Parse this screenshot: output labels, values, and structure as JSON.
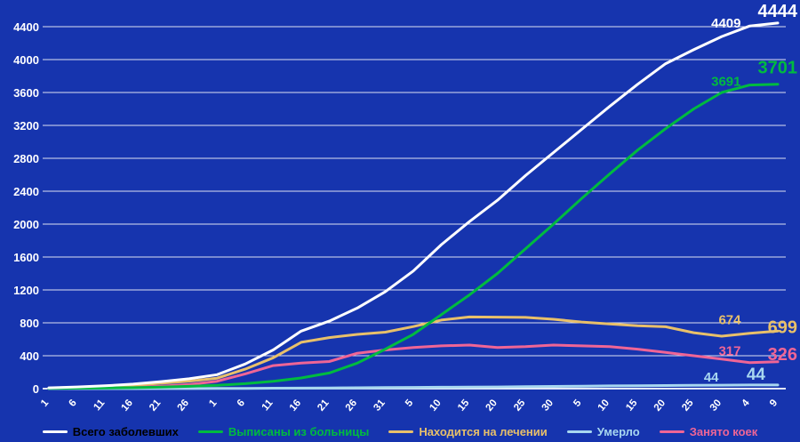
{
  "colors": {
    "background": "#1634ae",
    "grid": "#ffffff",
    "axis_text": "#ffffff"
  },
  "chart_data": {
    "type": "line",
    "title": "",
    "xlabel": "",
    "ylabel": "",
    "ylim": [
      0,
      4400
    ],
    "y_ticks": [
      0,
      400,
      800,
      1200,
      1600,
      2000,
      2400,
      2800,
      3200,
      3600,
      4000,
      4400
    ],
    "grid": "horizontal",
    "legend_position": "bottom",
    "x_tick_labels": [
      "1",
      "6",
      "11",
      "16",
      "21",
      "26",
      "1",
      "6",
      "11",
      "16",
      "21",
      "26",
      "31",
      "5",
      "10",
      "15",
      "20",
      "25",
      "30",
      "5",
      "10",
      "15",
      "20",
      "25",
      "30",
      "4",
      "9"
    ],
    "series": [
      {
        "name": "Всего заболевших",
        "color": "#ffffff",
        "legend_text_color": "#000000",
        "end_labels": [
          "4409",
          "4444"
        ],
        "values": [
          10,
          20,
          35,
          55,
          85,
          120,
          170,
          300,
          470,
          700,
          820,
          980,
          1180,
          1430,
          1750,
          2030,
          2290,
          2590,
          2870,
          3150,
          3430,
          3700,
          3950,
          4120,
          4280,
          4409,
          4444
        ]
      },
      {
        "name": "Выписаны из больницы",
        "color": "#00bb3f",
        "legend_text_color": "#00bb3f",
        "end_labels": [
          "3691",
          "3701"
        ],
        "values": [
          2,
          5,
          8,
          12,
          18,
          28,
          40,
          60,
          90,
          130,
          190,
          310,
          480,
          660,
          900,
          1140,
          1400,
          1700,
          2000,
          2310,
          2610,
          2900,
          3160,
          3400,
          3600,
          3691,
          3701
        ]
      },
      {
        "name": "Находится на лечении",
        "color": "#e8c06a",
        "legend_text_color": "#e8c06a",
        "end_labels": [
          "674",
          "699"
        ],
        "values": [
          8,
          15,
          27,
          43,
          66,
          91,
          128,
          237,
          375,
          563,
          621,
          659,
          687,
          755,
          833,
          871,
          869,
          866,
          843,
          810,
          787,
          764,
          752,
          680,
          638,
          674,
          699
        ]
      },
      {
        "name": "Умерло",
        "color": "#a8d7f0",
        "legend_text_color": "#a8d7f0",
        "end_labels": [
          "44",
          "44"
        ],
        "values": [
          0,
          0,
          0,
          0,
          1,
          1,
          2,
          3,
          5,
          7,
          9,
          11,
          13,
          15,
          17,
          19,
          21,
          24,
          27,
          30,
          33,
          36,
          38,
          40,
          42,
          44,
          44
        ]
      },
      {
        "name": "Занято коек",
        "color": "#ef6596",
        "legend_text_color": "#ef6596",
        "end_labels": [
          "317",
          "326"
        ],
        "values": [
          3,
          6,
          10,
          18,
          30,
          50,
          90,
          180,
          280,
          310,
          330,
          430,
          470,
          500,
          520,
          530,
          500,
          510,
          530,
          520,
          510,
          480,
          440,
          400,
          360,
          317,
          326
        ]
      }
    ]
  }
}
